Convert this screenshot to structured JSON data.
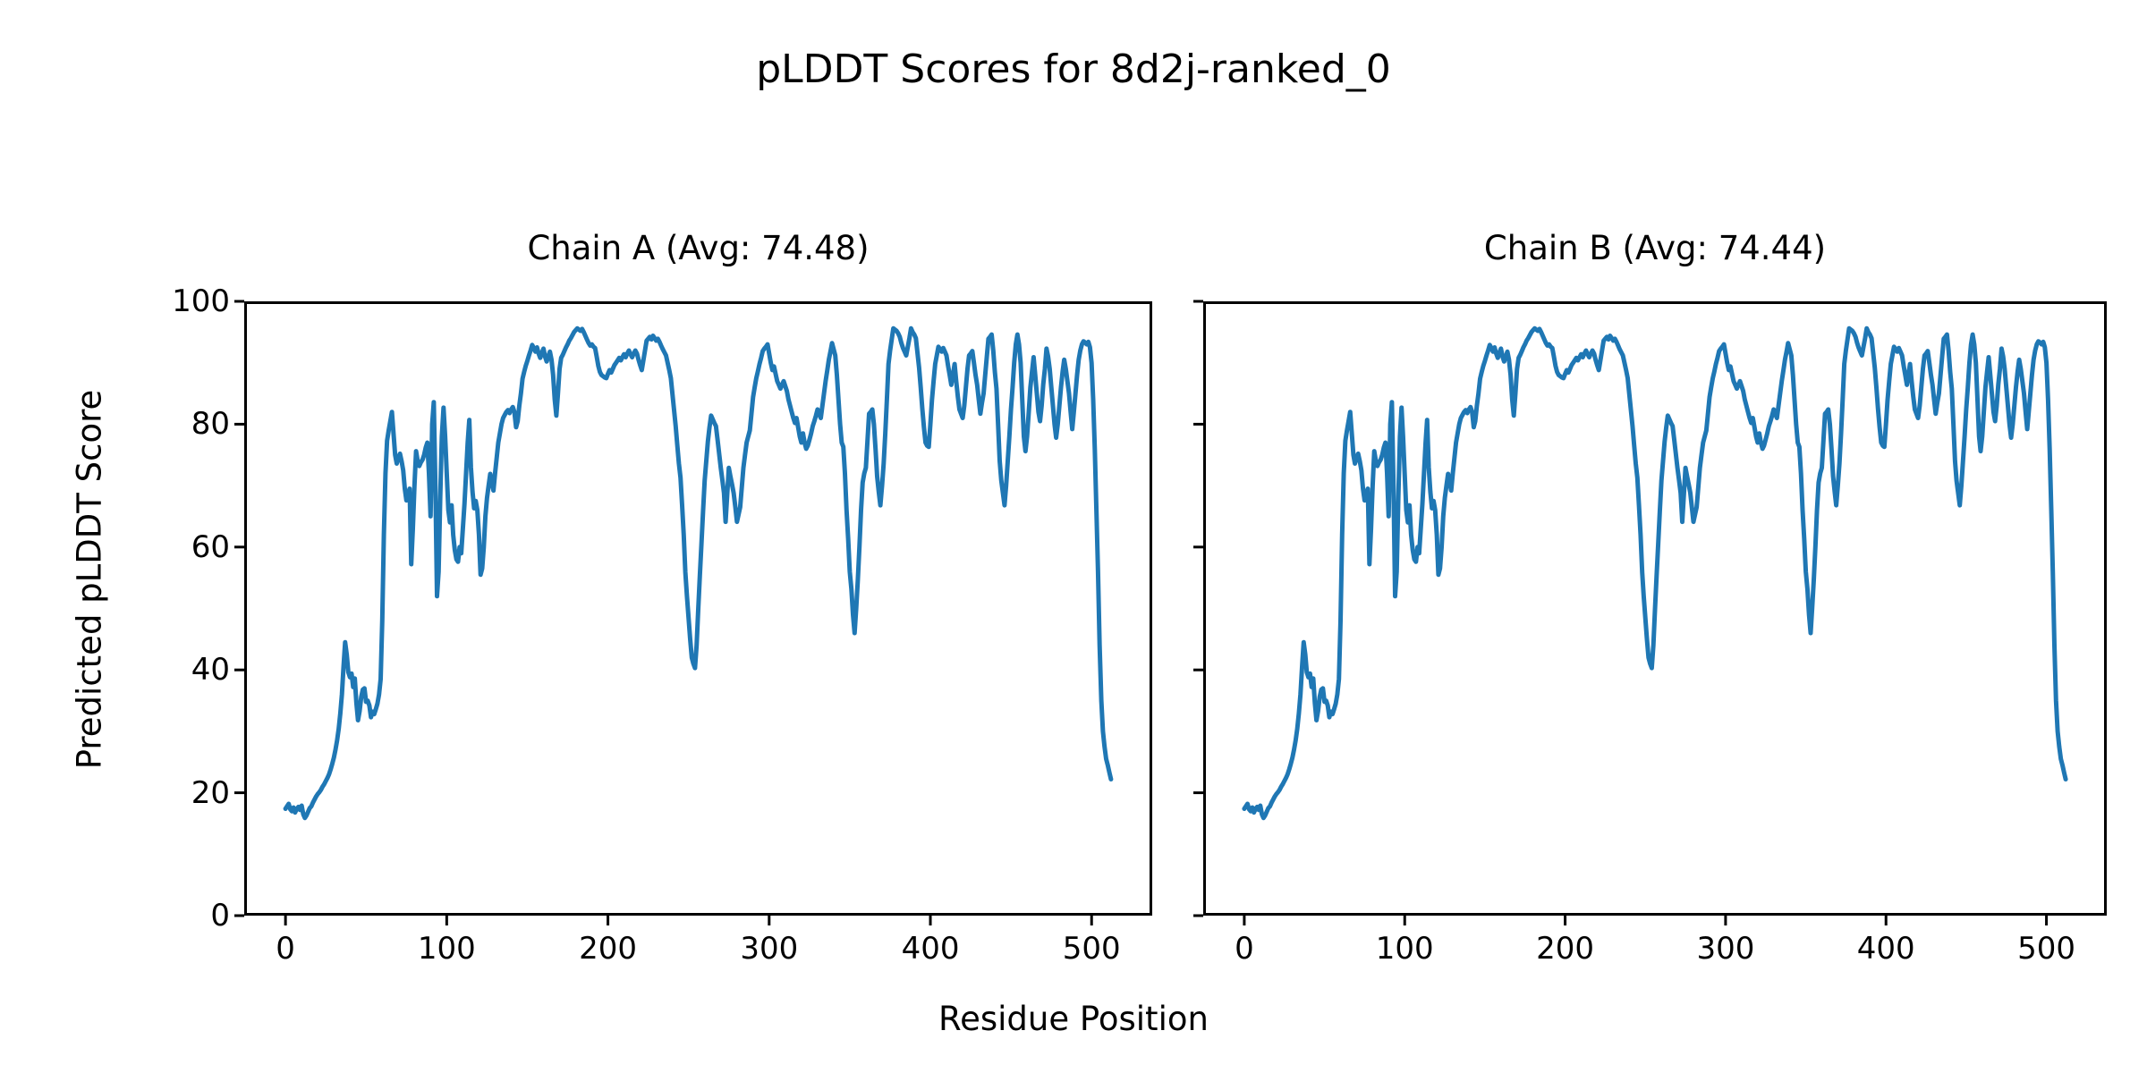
{
  "figure": {
    "suptitle": "pLDDT Scores for 8d2j-ranked_0",
    "xlabel": "Residue Position",
    "ylabel": "Predicted pLDDT Score",
    "background_color": "#ffffff",
    "line_color": "#1f77b4",
    "spine_color": "#000000"
  },
  "chart_data": {
    "type": "line",
    "layout": "1x2_subplots_shared_y",
    "title": "pLDDT Scores for 8d2j-ranked_0",
    "xlabel": "Residue Position",
    "ylabel": "Predicted pLDDT Score",
    "xlim": [
      -25.6,
      537.6
    ],
    "ylim": [
      0,
      100
    ],
    "xticks": [
      0,
      100,
      200,
      300,
      400,
      500
    ],
    "yticks": [
      0,
      20,
      40,
      60,
      80,
      100
    ],
    "grid": false,
    "legend": null,
    "x_description": "residue index 0..512, one sample per residue",
    "subplots": [
      {
        "title": "Chain A (Avg: 74.48)",
        "avg": 74.48,
        "series": [
          {
            "name": "Chain A pLDDT",
            "color": "#1f77b4",
            "y_ref": "shared_plddt_y"
          }
        ]
      },
      {
        "title": "Chain B (Avg: 74.44)",
        "avg": 74.44,
        "series": [
          {
            "name": "Chain B pLDDT",
            "color": "#1f77b4",
            "y_ref": "shared_plddt_y"
          }
        ]
      }
    ],
    "shared_plddt_y": [
      17.4,
      17.8,
      18.2,
      17.3,
      17.0,
      17.6,
      16.8,
      17.4,
      17.7,
      17.2,
      17.9,
      16.5,
      15.9,
      16.3,
      16.9,
      17.5,
      17.8,
      18.4,
      18.9,
      19.4,
      19.8,
      20.1,
      20.5,
      21.0,
      21.4,
      21.9,
      22.4,
      23.0,
      23.8,
      24.7,
      25.7,
      27.0,
      28.5,
      30.4,
      32.9,
      36.0,
      40.5,
      44.5,
      42.5,
      39.6,
      38.8,
      39.4,
      37.2,
      38.6,
      34.6,
      31.8,
      33.3,
      35.6,
      36.8,
      37.0,
      34.8,
      35.0,
      34.2,
      32.3,
      33.2,
      32.8,
      33.6,
      34.5,
      36.0,
      38.5,
      48.0,
      62.0,
      72.0,
      77.3,
      79.0,
      80.5,
      82.0,
      78.5,
      75.0,
      73.6,
      74.5,
      75.2,
      74.0,
      72.5,
      69.5,
      67.6,
      68.5,
      69.5,
      57.2,
      63.0,
      70.0,
      75.6,
      74.0,
      73.2,
      73.8,
      74.2,
      75.0,
      76.2,
      77.0,
      72.0,
      65.0,
      80.0,
      83.6,
      70.0,
      52.0,
      56.0,
      68.0,
      78.0,
      82.7,
      78.0,
      72.0,
      66.0,
      64.0,
      66.8,
      62.0,
      59.5,
      58.0,
      57.6,
      60.0,
      59.0,
      63.0,
      67.0,
      72.0,
      77.0,
      80.7,
      73.0,
      69.0,
      66.3,
      67.5,
      66.0,
      62.0,
      55.5,
      56.5,
      60.0,
      65.0,
      68.0,
      70.0,
      71.9,
      70.5,
      69.2,
      72.0,
      74.5,
      77.0,
      78.5,
      80.0,
      81.0,
      81.5,
      82.0,
      82.3,
      81.8,
      82.4,
      82.8,
      82.0,
      79.5,
      80.5,
      83.0,
      85.0,
      87.4,
      88.5,
      89.5,
      90.3,
      91.2,
      92.0,
      92.9,
      92.4,
      91.8,
      92.5,
      91.5,
      90.8,
      91.6,
      92.3,
      91.0,
      90.2,
      91.0,
      91.8,
      90.5,
      88.0,
      84.0,
      81.4,
      85.0,
      89.0,
      90.8,
      91.3,
      91.9,
      92.5,
      93.0,
      93.6,
      94.0,
      94.5,
      95.0,
      95.3,
      95.6,
      95.4,
      95.2,
      95.5,
      95.0,
      94.4,
      93.8,
      93.2,
      92.8,
      93.0,
      92.6,
      92.4,
      91.0,
      89.5,
      88.5,
      88.0,
      87.8,
      87.6,
      87.5,
      88.2,
      88.8,
      88.4,
      89.0,
      89.6,
      90.0,
      90.4,
      90.8,
      90.4,
      90.9,
      91.4,
      90.9,
      91.5,
      92.0,
      91.4,
      90.9,
      91.5,
      92.0,
      91.5,
      90.5,
      89.6,
      88.8,
      90.4,
      92.0,
      93.6,
      93.9,
      94.2,
      93.8,
      94.4,
      94.0,
      93.6,
      93.9,
      93.4,
      92.8,
      92.2,
      91.7,
      91.2,
      90.0,
      88.8,
      87.5,
      84.9,
      82.3,
      79.7,
      76.6,
      73.6,
      71.3,
      66.8,
      62.0,
      55.9,
      52.0,
      48.5,
      45.0,
      42.0,
      41.0,
      40.3,
      44.0,
      49.8,
      55.3,
      60.5,
      65.8,
      70.8,
      74.0,
      77.2,
      79.5,
      81.4,
      80.8,
      80.2,
      79.7,
      77.5,
      75.2,
      72.9,
      70.9,
      68.8,
      64.1,
      68.5,
      72.9,
      71.5,
      70.2,
      68.8,
      66.5,
      64.1,
      65.3,
      66.5,
      69.7,
      72.9,
      75.0,
      77.0,
      78.0,
      79.0,
      81.7,
      84.4,
      86.0,
      87.5,
      88.6,
      89.8,
      90.8,
      91.9,
      92.3,
      92.6,
      93.0,
      91.5,
      90.0,
      88.8,
      89.4,
      88.2,
      87.0,
      86.4,
      85.8,
      86.4,
      87.0,
      86.2,
      85.4,
      84.0,
      83.0,
      82.0,
      81.0,
      80.2,
      81.0,
      79.5,
      78.0,
      77.0,
      78.5,
      77.0,
      76.0,
      76.5,
      77.5,
      78.5,
      79.7,
      80.5,
      81.4,
      82.4,
      81.7,
      81.0,
      83.0,
      85.0,
      87.0,
      88.7,
      90.5,
      91.8,
      93.2,
      92.2,
      91.2,
      88.0,
      84.0,
      80.0,
      77.0,
      76.3,
      72.0,
      66.0,
      61.4,
      56.0,
      53.2,
      49.0,
      46.0,
      50.0,
      54.6,
      60.0,
      66.0,
      70.5,
      72.0,
      72.9,
      77.3,
      81.7,
      82.0,
      82.4,
      80.0,
      76.0,
      71.5,
      69.0,
      66.8,
      70.0,
      73.6,
      78.5,
      84.0,
      89.8,
      92.0,
      93.8,
      95.6,
      95.4,
      95.2,
      94.8,
      94.2,
      93.2,
      92.4,
      91.8,
      91.2,
      92.6,
      94.0,
      95.6,
      95.0,
      94.6,
      94.0,
      91.6,
      89.2,
      86.0,
      82.5,
      79.5,
      77.0,
      76.5,
      76.3,
      80.0,
      84.0,
      87.0,
      89.8,
      91.2,
      92.6,
      92.2,
      91.8,
      92.4,
      91.8,
      91.2,
      89.5,
      88.0,
      86.4,
      88.0,
      89.8,
      87.0,
      84.5,
      82.4,
      81.7,
      81.0,
      83.0,
      86.0,
      89.0,
      91.2,
      91.5,
      91.9,
      90.0,
      88.0,
      86.4,
      84.0,
      81.7,
      83.5,
      85.0,
      88.0,
      91.0,
      93.9,
      94.2,
      94.6,
      92.0,
      88.5,
      85.8,
      80.0,
      74.0,
      70.8,
      68.8,
      66.8,
      70.0,
      74.0,
      78.0,
      82.4,
      86.0,
      90.0,
      93.0,
      94.6,
      93.0,
      90.0,
      84.0,
      78.0,
      75.6,
      78.0,
      82.0,
      86.0,
      88.5,
      90.9,
      88.0,
      85.0,
      82.0,
      80.5,
      83.0,
      86.5,
      89.0,
      92.3,
      91.0,
      89.0,
      86.0,
      83.0,
      80.0,
      77.8,
      80.0,
      83.0,
      86.0,
      88.5,
      90.5,
      89.0,
      87.0,
      85.0,
      82.0,
      79.2,
      82.0,
      85.0,
      88.0,
      90.5,
      92.0,
      93.0,
      93.5,
      93.3,
      93.0,
      93.4,
      92.5,
      90.0,
      84.0,
      76.0,
      66.0,
      56.0,
      44.0,
      35.0,
      30.0,
      27.5,
      25.5,
      24.5,
      23.3,
      22.2
    ]
  }
}
